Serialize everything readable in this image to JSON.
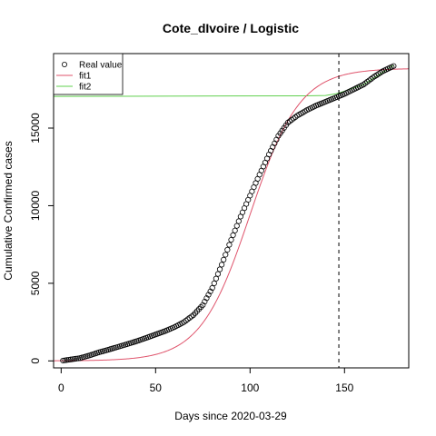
{
  "chart_data": {
    "type": "scatter",
    "title": "Cote_dIvoire / Logistic",
    "xlabel": "Days since 2020-03-29",
    "ylabel": "Cumulative Confirmed cases",
    "xlim": [
      -4,
      184
    ],
    "ylim": [
      -450,
      19800
    ],
    "x_ticks": [
      0,
      50,
      100,
      150
    ],
    "y_ticks": [
      0,
      5000,
      10000,
      15000
    ],
    "grid": false,
    "legend_position": "top-left",
    "vline_x": 147,
    "real_value": {
      "name": "Real value",
      "style": "open-circle",
      "x_start": 1,
      "x_end": 176,
      "anchors": [
        [
          1,
          20
        ],
        [
          5,
          90
        ],
        [
          10,
          180
        ],
        [
          15,
          350
        ],
        [
          20,
          550
        ],
        [
          25,
          720
        ],
        [
          30,
          900
        ],
        [
          35,
          1080
        ],
        [
          40,
          1270
        ],
        [
          45,
          1480
        ],
        [
          50,
          1700
        ],
        [
          55,
          1920
        ],
        [
          60,
          2180
        ],
        [
          65,
          2500
        ],
        [
          70,
          2950
        ],
        [
          75,
          3600
        ],
        [
          80,
          4700
        ],
        [
          85,
          6200
        ],
        [
          90,
          7800
        ],
        [
          95,
          9300
        ],
        [
          100,
          10650
        ],
        [
          105,
          12000
        ],
        [
          110,
          13300
        ],
        [
          115,
          14500
        ],
        [
          120,
          15350
        ],
        [
          125,
          15800
        ],
        [
          130,
          16150
        ],
        [
          135,
          16450
        ],
        [
          140,
          16700
        ],
        [
          145,
          16950
        ],
        [
          150,
          17200
        ],
        [
          155,
          17500
        ],
        [
          160,
          17800
        ],
        [
          165,
          18250
        ],
        [
          170,
          18650
        ],
        [
          176,
          19000
        ]
      ]
    },
    "fit1": {
      "name": "fit1",
      "color": "#DF536B",
      "curve": "logistic",
      "K": 18850,
      "r": 0.076,
      "midpoint_day": 100
    },
    "fit2": {
      "name": "fit2",
      "color": "#61D04F",
      "points": [
        [
          -4,
          17040
        ],
        [
          130,
          17080
        ],
        [
          140,
          17100
        ],
        [
          145,
          17200
        ],
        [
          148,
          17300
        ],
        [
          160,
          17800
        ],
        [
          176,
          19050
        ]
      ]
    },
    "legend": [
      "Real value",
      "fit1",
      "fit2"
    ]
  }
}
